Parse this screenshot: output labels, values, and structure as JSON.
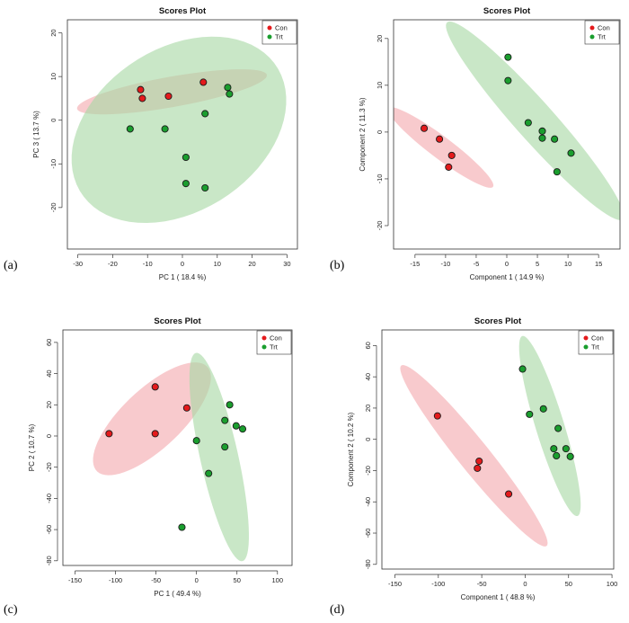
{
  "chart_data": [
    {
      "panel": "(a)",
      "type": "scatter",
      "title": "Scores Plot",
      "xlabel": "PC 1 ( 18.4 %)",
      "ylabel": "PC 3 ( 13.7 %)",
      "xlim": [
        -33,
        33
      ],
      "ylim": [
        -29.5,
        23
      ],
      "xticks": [
        -30,
        -20,
        -10,
        0,
        10,
        20,
        30
      ],
      "yticks": [
        -20,
        -10,
        0,
        10,
        20
      ],
      "legend": [
        "Con",
        "Trt"
      ],
      "legend_position": "top-right",
      "series": [
        {
          "name": "Con",
          "color": "#e41a1c",
          "fill": "#f4a9ae",
          "points": [
            [
              -12,
              7
            ],
            [
              -11.5,
              5
            ],
            [
              -4,
              5.5
            ],
            [
              6,
              8.7
            ]
          ],
          "ellipse": {
            "cx": -3,
            "cy": 6.5,
            "rx": 27.5,
            "ry": 3.5,
            "angle": 8
          }
        },
        {
          "name": "Trt",
          "color": "#1a9e2e",
          "fill": "#a8d8a4",
          "points": [
            [
              -15,
              -2
            ],
            [
              -5,
              -2
            ],
            [
              1,
              -8.5
            ],
            [
              1,
              -14.5
            ],
            [
              6.5,
              -15.5
            ],
            [
              6.5,
              1.5
            ],
            [
              13,
              7.5
            ],
            [
              13.5,
              6
            ]
          ],
          "ellipse": {
            "cx": -1,
            "cy": -2.2,
            "rx": 32,
            "ry": 19.5,
            "angle": 20
          }
        }
      ]
    },
    {
      "panel": "(b)",
      "type": "scatter",
      "title": "Scores Plot",
      "xlabel": "Component 1 ( 14.9 %)",
      "ylabel": "Component 2 ( 11.3 %)",
      "xlim": [
        -18.5,
        18.5
      ],
      "ylim": [
        -25,
        24
      ],
      "xticks": [
        -15,
        -10,
        -5,
        0,
        5,
        10,
        15
      ],
      "yticks": [
        -20,
        -10,
        0,
        10,
        20
      ],
      "legend": [
        "Con",
        "Trt"
      ],
      "legend_position": "top-right",
      "series": [
        {
          "name": "Con",
          "color": "#e41a1c",
          "fill": "#f4a9ae",
          "points": [
            [
              -13.5,
              0.8
            ],
            [
              -11,
              -1.5
            ],
            [
              -9,
              -5
            ],
            [
              -9.5,
              -7.5
            ]
          ],
          "ellipse": {
            "cx": -10.8,
            "cy": -3.3,
            "rx": 12,
            "ry": 2.1,
            "angle": -45
          }
        },
        {
          "name": "Trt",
          "color": "#1a9e2e",
          "fill": "#a8d8a4",
          "points": [
            [
              0.2,
              16
            ],
            [
              0.2,
              11
            ],
            [
              3.5,
              2
            ],
            [
              5.8,
              0.2
            ],
            [
              5.8,
              -1.3
            ],
            [
              7.8,
              -1.5
            ],
            [
              8.2,
              -8.5
            ],
            [
              10.5,
              -4.5
            ]
          ],
          "ellipse": {
            "cx": 4.6,
            "cy": 2.4,
            "rx": 25.5,
            "ry": 3.5,
            "angle": -56
          }
        }
      ]
    },
    {
      "panel": "(c)",
      "type": "scatter",
      "title": "Scores Plot",
      "xlabel": "PC 1 ( 49.4 %)",
      "ylabel": "PC 2 ( 10.7 %)",
      "xlim": [
        -165,
        118
      ],
      "ylim": [
        -83,
        68
      ],
      "xticks": [
        -150,
        -100,
        -50,
        0,
        50,
        100
      ],
      "yticks": [
        -80,
        -60,
        -40,
        -20,
        0,
        20,
        40,
        60
      ],
      "legend": [
        "Con",
        "Trt"
      ],
      "legend_position": "top-right",
      "series": [
        {
          "name": "Con",
          "color": "#e41a1c",
          "fill": "#f4a9ae",
          "points": [
            [
              -108,
              1.5
            ],
            [
              -51,
              31.5
            ],
            [
              -51,
              1.5
            ],
            [
              -12,
              18
            ]
          ],
          "ellipse": {
            "cx": -55,
            "cy": 11,
            "rx": 78,
            "ry": 23,
            "angle": 22
          }
        },
        {
          "name": "Trt",
          "color": "#1a9e2e",
          "fill": "#a8d8a4",
          "points": [
            [
              -18,
              -58.5
            ],
            [
              0,
              -3
            ],
            [
              15,
              -24
            ],
            [
              35,
              10
            ],
            [
              35,
              -7
            ],
            [
              41,
              20
            ],
            [
              49,
              6.5
            ],
            [
              57,
              4.5
            ]
          ],
          "ellipse": {
            "cx": 28,
            "cy": -13.5,
            "rx": 73,
            "ry": 22,
            "angle": -65
          }
        }
      ]
    },
    {
      "panel": "(d)",
      "type": "scatter",
      "title": "Scores Plot",
      "xlabel": "Component 1 ( 48.8 %)",
      "ylabel": "Component 2 ( 10.2 %)",
      "xlim": [
        -165,
        102
      ],
      "ylim": [
        -83,
        70
      ],
      "xticks": [
        -150,
        -100,
        -50,
        0,
        50,
        100
      ],
      "yticks": [
        -80,
        -60,
        -40,
        -20,
        0,
        20,
        40,
        60
      ],
      "legend": [
        "Con",
        "Trt"
      ],
      "legend_position": "top-right",
      "series": [
        {
          "name": "Con",
          "color": "#e41a1c",
          "fill": "#f4a9ae",
          "points": [
            [
              -101,
              15
            ],
            [
              -53,
              -14
            ],
            [
              -55,
              -18.5
            ],
            [
              -19,
              -35
            ]
          ],
          "ellipse": {
            "cx": -59,
            "cy": -10.5,
            "rx": 102,
            "ry": 13,
            "angle": -34
          }
        },
        {
          "name": "Trt",
          "color": "#1a9e2e",
          "fill": "#a8d8a4",
          "points": [
            [
              -3,
              45
            ],
            [
              5,
              16
            ],
            [
              21,
              19.5
            ],
            [
              33,
              -6
            ],
            [
              36,
              -10.5
            ],
            [
              38,
              7
            ],
            [
              47,
              -6
            ],
            [
              52,
              -11
            ]
          ],
          "ellipse": {
            "cx": 28.5,
            "cy": 8.5,
            "rx": 66,
            "ry": 15,
            "angle": -60
          }
        }
      ]
    }
  ]
}
